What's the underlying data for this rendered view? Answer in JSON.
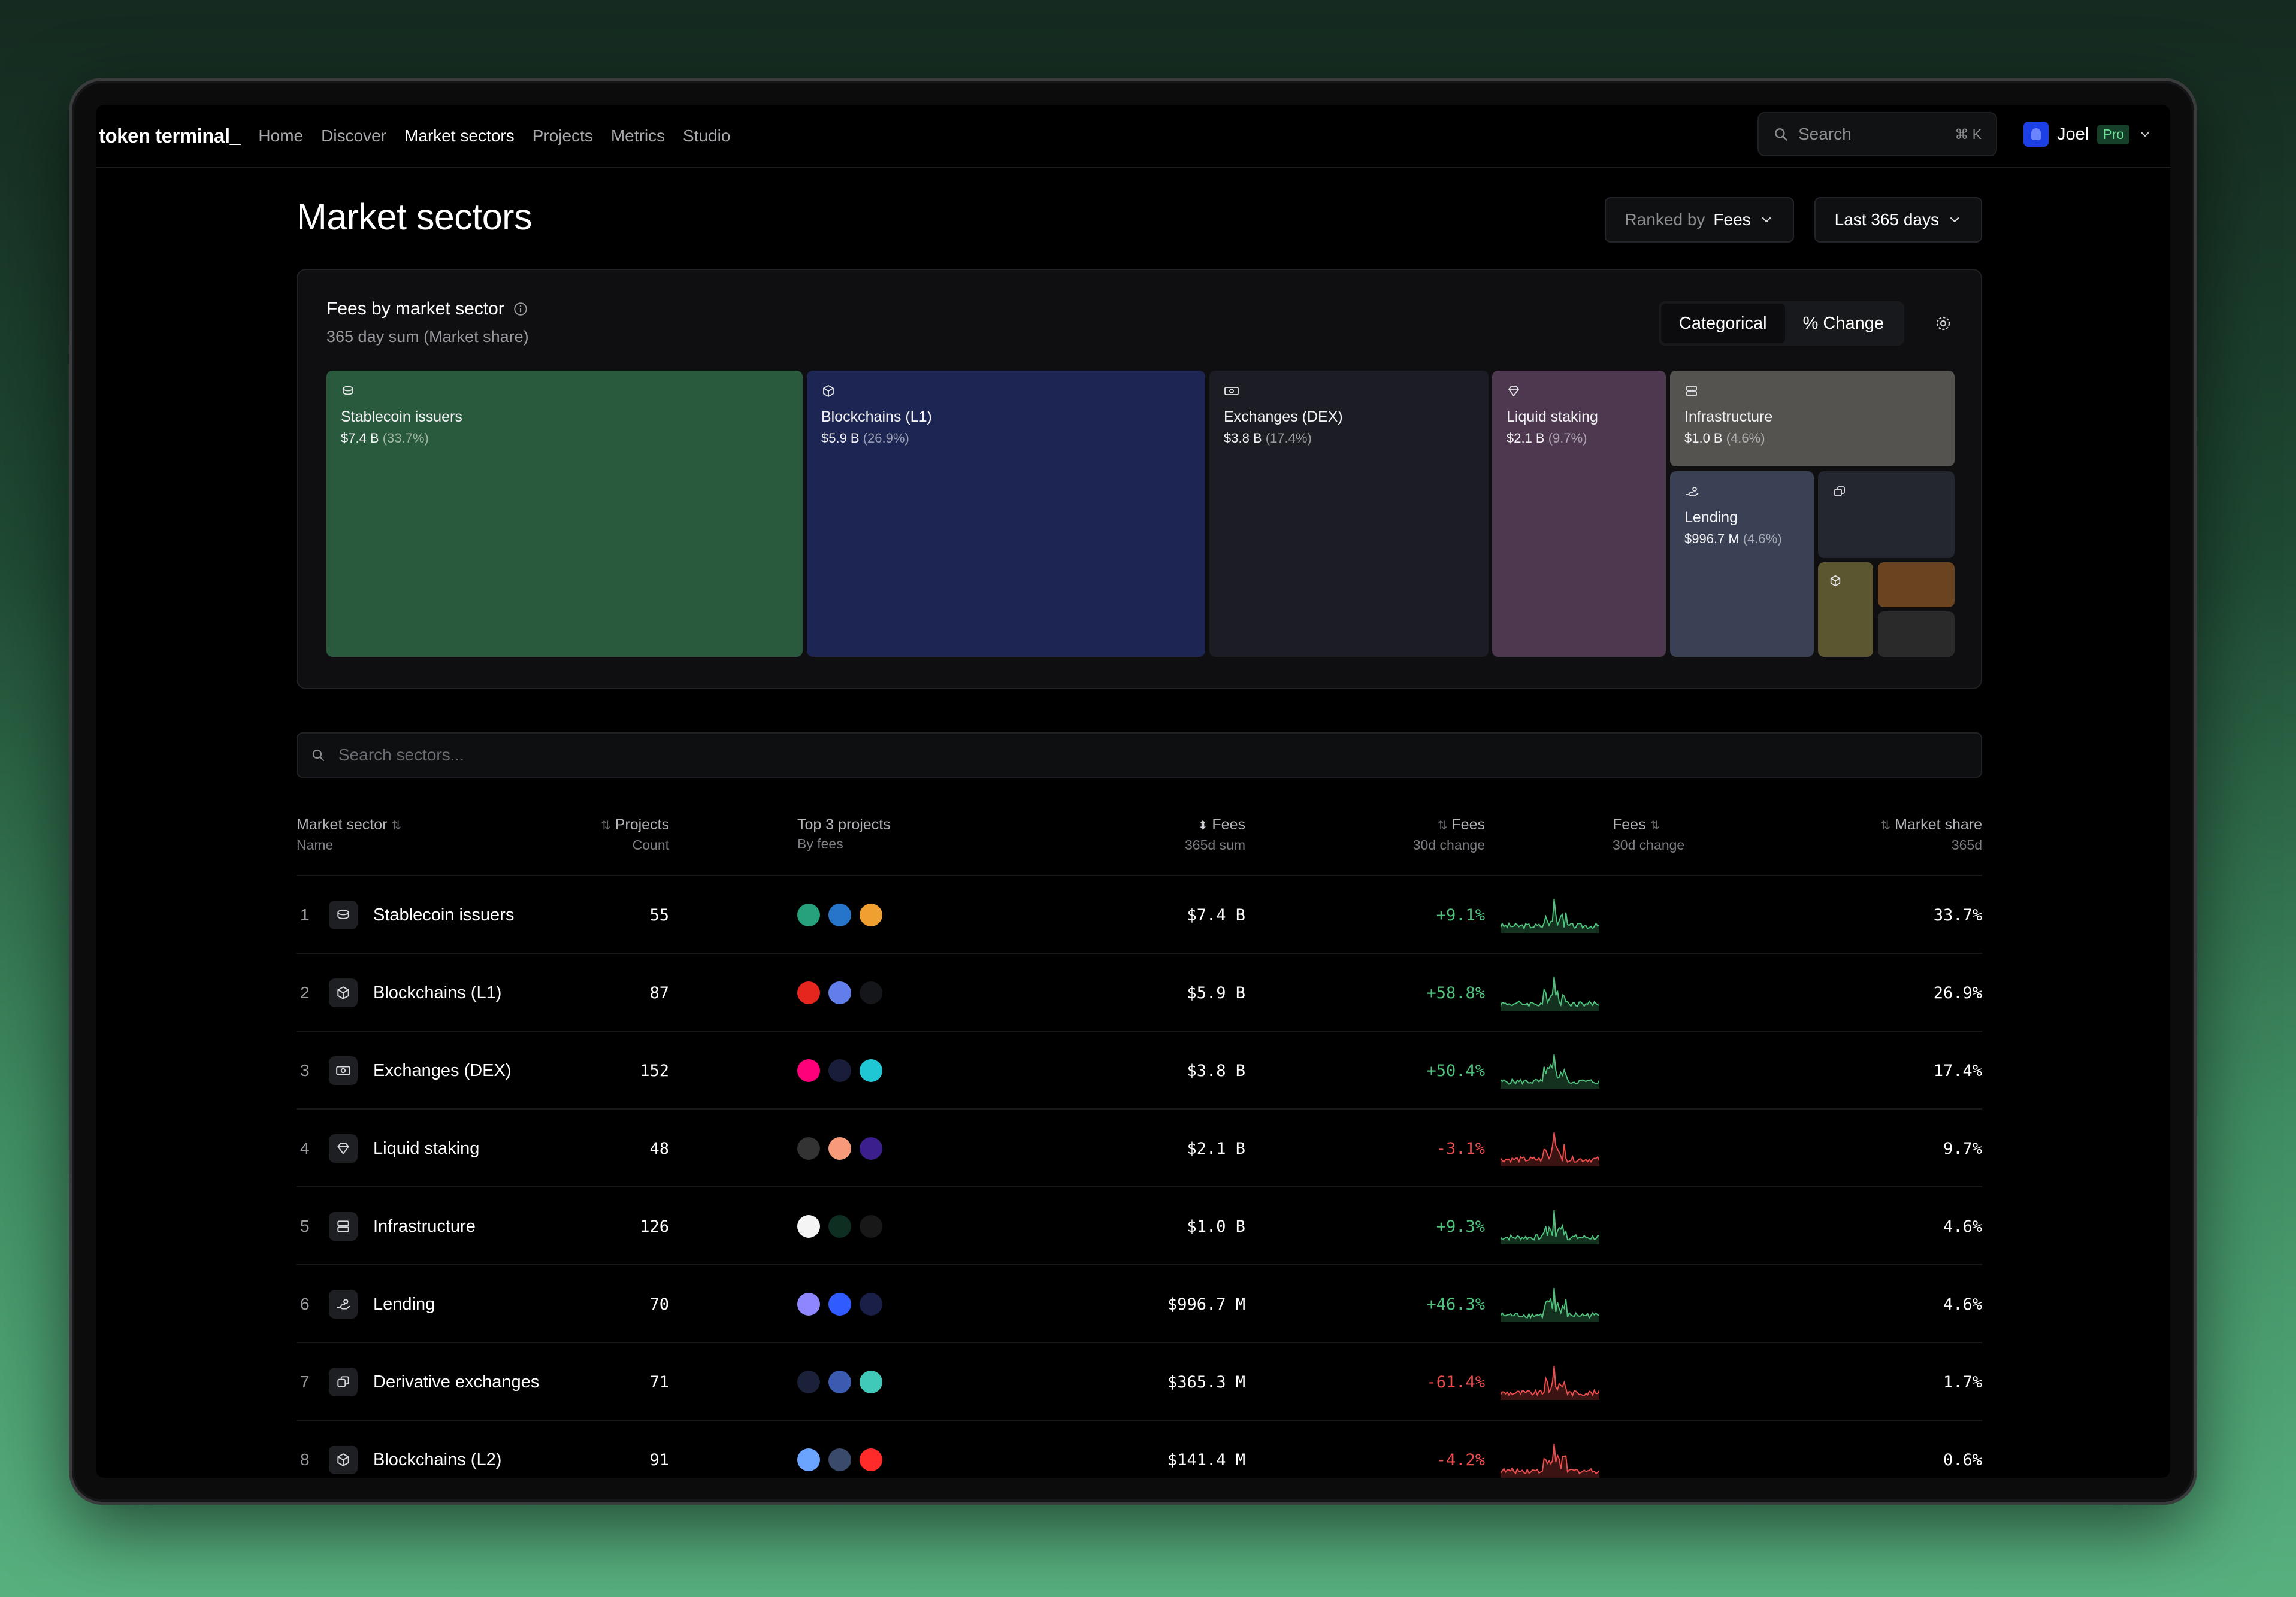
{
  "nav": {
    "logo": "token terminal_",
    "links": [
      "Home",
      "Discover",
      "Market sectors",
      "Projects",
      "Metrics",
      "Studio"
    ],
    "search_placeholder": "Search",
    "search_shortcut": "⌘ K",
    "user_name": "Joel",
    "user_badge": "Pro"
  },
  "page": {
    "title": "Market sectors",
    "ranked_by_label": "Ranked by",
    "ranked_by_value": "Fees",
    "period": "Last 365 days"
  },
  "treemap": {
    "title": "Fees by market sector",
    "subtitle": "365 day sum (Market share)",
    "modes": [
      "Categorical",
      "% Change"
    ],
    "tiles": [
      {
        "label": "Stablecoin issuers",
        "value": "$7.4 B",
        "share": "(33.7%)",
        "color": "#2a5a3d",
        "icon": "coin-stack-icon"
      },
      {
        "label": "Blockchains (L1)",
        "value": "$5.9 B",
        "share": "(26.9%)",
        "color": "#1d2653",
        "icon": "cube-icon"
      },
      {
        "label": "Exchanges (DEX)",
        "value": "$3.8 B",
        "share": "(17.4%)",
        "color": "#1c1c25",
        "icon": "banknote-icon"
      },
      {
        "label": "Liquid staking",
        "value": "$2.1 B",
        "share": "(9.7%)",
        "color": "#4e3850",
        "icon": "diamond-icon"
      },
      {
        "label": "Infrastructure",
        "value": "$1.0 B",
        "share": "(4.6%)",
        "color": "#545350",
        "icon": "server-icon"
      },
      {
        "label": "Lending",
        "value": "$996.7 M",
        "share": "(4.6%)",
        "color": "#3a4154",
        "icon": "hand-coins-icon"
      },
      {
        "label": "",
        "value": "",
        "share": "",
        "color": "#252730",
        "icon": "swap-icon"
      },
      {
        "label": "",
        "value": "",
        "share": "",
        "color": "#5b5630",
        "icon": "cube-icon"
      },
      {
        "label": "",
        "value": "",
        "share": "",
        "color": "#6a4420",
        "icon": ""
      },
      {
        "label": "",
        "value": "",
        "share": "",
        "color": "#2a2a2b",
        "icon": ""
      }
    ]
  },
  "search_sectors": {
    "placeholder": "Search sectors..."
  },
  "table": {
    "headers": {
      "sector": "Market sector",
      "sector_sub": "Name",
      "projects": "Projects",
      "projects_sub": "Count",
      "top3": "Top 3 projects",
      "top3_sub": "By fees",
      "fees": "Fees",
      "fees_sub": "365d sum",
      "fees_chg": "Fees",
      "fees_chg_sub": "30d change",
      "fees_spark": "Fees",
      "fees_spark_sub": "30d change",
      "share": "Market share",
      "share_sub": "365d"
    },
    "rows": [
      {
        "rank": "1",
        "name": "Stablecoin issuers",
        "icon": "coin-stack-icon",
        "count": "55",
        "logos": [
          "#26a17b",
          "#2775ca",
          "#f0a030"
        ],
        "fees": "$7.4 B",
        "change": "+9.1%",
        "trend": "pos",
        "share": "33.7%"
      },
      {
        "rank": "2",
        "name": "Blockchains (L1)",
        "icon": "cube-icon",
        "count": "87",
        "logos": [
          "#e5261f",
          "#627eea",
          "#14161a"
        ],
        "fees": "$5.9 B",
        "change": "+58.8%",
        "trend": "pos",
        "share": "26.9%"
      },
      {
        "rank": "3",
        "name": "Exchanges (DEX)",
        "icon": "banknote-icon",
        "count": "152",
        "logos": [
          "#ff007a",
          "#1a1d3a",
          "#1fc7d4"
        ],
        "fees": "$3.8 B",
        "change": "+50.4%",
        "trend": "pos",
        "share": "17.4%"
      },
      {
        "rank": "4",
        "name": "Liquid staking",
        "icon": "diamond-icon",
        "count": "48",
        "logos": [
          "#333333",
          "#f79a7a",
          "#3b1f8c"
        ],
        "fees": "$2.1 B",
        "change": "-3.1%",
        "trend": "neg",
        "share": "9.7%"
      },
      {
        "rank": "5",
        "name": "Infrastructure",
        "icon": "server-icon",
        "count": "126",
        "logos": [
          "#f4f4f4",
          "#0f2e22",
          "#181818"
        ],
        "fees": "$1.0 B",
        "change": "+9.3%",
        "trend": "pos",
        "share": "4.6%"
      },
      {
        "rank": "6",
        "name": "Lending",
        "icon": "hand-coins-icon",
        "count": "70",
        "logos": [
          "#8d86ff",
          "#2f5bff",
          "#1a1f48"
        ],
        "fees": "$996.7 M",
        "change": "+46.3%",
        "trend": "pos",
        "share": "4.6%"
      },
      {
        "rank": "7",
        "name": "Derivative exchanges",
        "icon": "swap-icon",
        "count": "71",
        "logos": [
          "#1a2138",
          "#3b5bb0",
          "#40c9b8"
        ],
        "fees": "$365.3 M",
        "change": "-61.4%",
        "trend": "neg",
        "share": "1.7%"
      },
      {
        "rank": "8",
        "name": "Blockchains (L2)",
        "icon": "cube-icon",
        "count": "91",
        "logos": [
          "#6ba4ff",
          "#3a4a6a",
          "#ff2a2a"
        ],
        "fees": "$141.4 M",
        "change": "-4.2%",
        "trend": "neg",
        "share": "0.6%"
      }
    ]
  },
  "colors": {
    "positive": "#4fc17d",
    "negative": "#ea4d4d",
    "accent": "#1d3fe6"
  }
}
